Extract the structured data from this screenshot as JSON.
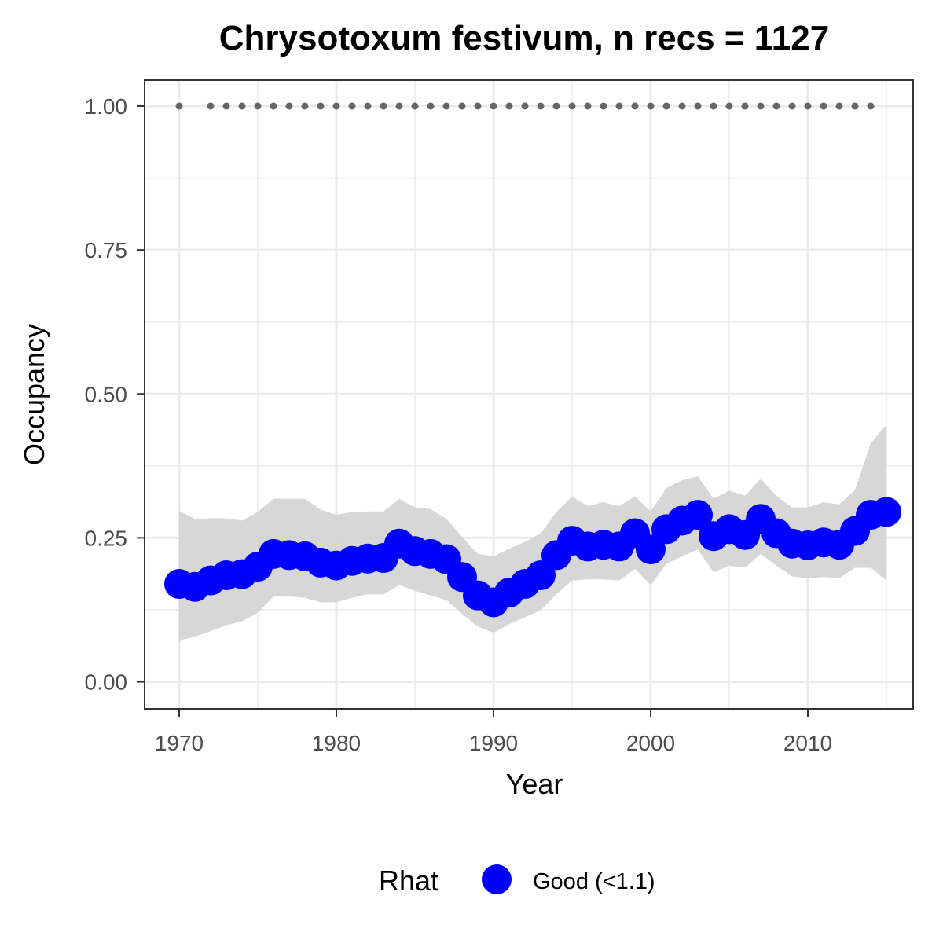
{
  "chart_data": {
    "type": "line",
    "title": "Chrysotoxum festivum, n recs = 1127",
    "xlabel": "Year",
    "ylabel": "Occupancy",
    "xlim": [
      1967.8,
      2016.7
    ],
    "ylim": [
      -0.047,
      1.045
    ],
    "x_ticks": [
      1970,
      1980,
      1990,
      2000,
      2010
    ],
    "x_minor_ticks": [
      1975,
      1985,
      1995,
      2005,
      2015
    ],
    "y_ticks": [
      0,
      0.25,
      0.5,
      0.75,
      1.0
    ],
    "y_tick_labels": [
      "0.00",
      "0.25",
      "0.50",
      "0.75",
      "1.00"
    ],
    "y_minor_ticks": [
      0.125,
      0.375,
      0.625,
      0.875
    ],
    "grid": true,
    "legend": {
      "title": "Rhat",
      "position": "bottom",
      "items": [
        {
          "label": "Good (<1.1)",
          "color": "#0000ff"
        }
      ]
    },
    "colors": {
      "series": "#0000ff",
      "ribbon": "#d3d3d3",
      "data_years": "#666666",
      "grid": "#ebebeb",
      "panel_border": "#333333"
    },
    "series": [
      {
        "name": "Good (<1.1)",
        "x": [
          1970,
          1971,
          1972,
          1973,
          1974,
          1975,
          1976,
          1977,
          1978,
          1979,
          1980,
          1981,
          1982,
          1983,
          1984,
          1985,
          1986,
          1987,
          1988,
          1989,
          1990,
          1991,
          1992,
          1993,
          1994,
          1995,
          1996,
          1997,
          1998,
          1999,
          2000,
          2001,
          2002,
          2003,
          2004,
          2005,
          2006,
          2007,
          2008,
          2009,
          2010,
          2011,
          2012,
          2013,
          2014,
          2015
        ],
        "y": [
          0.17,
          0.165,
          0.176,
          0.185,
          0.187,
          0.2,
          0.222,
          0.22,
          0.218,
          0.207,
          0.202,
          0.21,
          0.214,
          0.215,
          0.24,
          0.227,
          0.222,
          0.213,
          0.182,
          0.15,
          0.138,
          0.155,
          0.17,
          0.185,
          0.22,
          0.245,
          0.235,
          0.238,
          0.235,
          0.258,
          0.23,
          0.265,
          0.28,
          0.29,
          0.253,
          0.265,
          0.255,
          0.283,
          0.258,
          0.24,
          0.237,
          0.242,
          0.238,
          0.262,
          0.29,
          0.295
        ],
        "lower": [
          0.072,
          0.078,
          0.088,
          0.098,
          0.105,
          0.12,
          0.148,
          0.148,
          0.146,
          0.138,
          0.138,
          0.146,
          0.152,
          0.152,
          0.168,
          0.158,
          0.15,
          0.142,
          0.118,
          0.096,
          0.085,
          0.1,
          0.112,
          0.124,
          0.152,
          0.176,
          0.178,
          0.178,
          0.176,
          0.196,
          0.168,
          0.205,
          0.218,
          0.23,
          0.19,
          0.202,
          0.198,
          0.222,
          0.202,
          0.183,
          0.18,
          0.182,
          0.18,
          0.198,
          0.198,
          0.176
        ],
        "upper": [
          0.297,
          0.283,
          0.284,
          0.284,
          0.28,
          0.295,
          0.318,
          0.318,
          0.318,
          0.299,
          0.29,
          0.295,
          0.296,
          0.296,
          0.318,
          0.303,
          0.3,
          0.283,
          0.252,
          0.222,
          0.218,
          0.231,
          0.243,
          0.258,
          0.295,
          0.322,
          0.305,
          0.312,
          0.305,
          0.322,
          0.296,
          0.337,
          0.35,
          0.357,
          0.318,
          0.332,
          0.323,
          0.353,
          0.323,
          0.303,
          0.303,
          0.312,
          0.308,
          0.333,
          0.414,
          0.447
        ]
      }
    ],
    "data_years": {
      "y": 1.0,
      "years": [
        1970,
        1972,
        1973,
        1974,
        1975,
        1976,
        1977,
        1978,
        1979,
        1980,
        1981,
        1982,
        1983,
        1984,
        1985,
        1986,
        1987,
        1988,
        1989,
        1990,
        1991,
        1992,
        1993,
        1994,
        1995,
        1996,
        1997,
        1998,
        1999,
        2000,
        2001,
        2002,
        2003,
        2004,
        2005,
        2006,
        2007,
        2008,
        2009,
        2010,
        2011,
        2012,
        2013,
        2014
      ]
    }
  }
}
